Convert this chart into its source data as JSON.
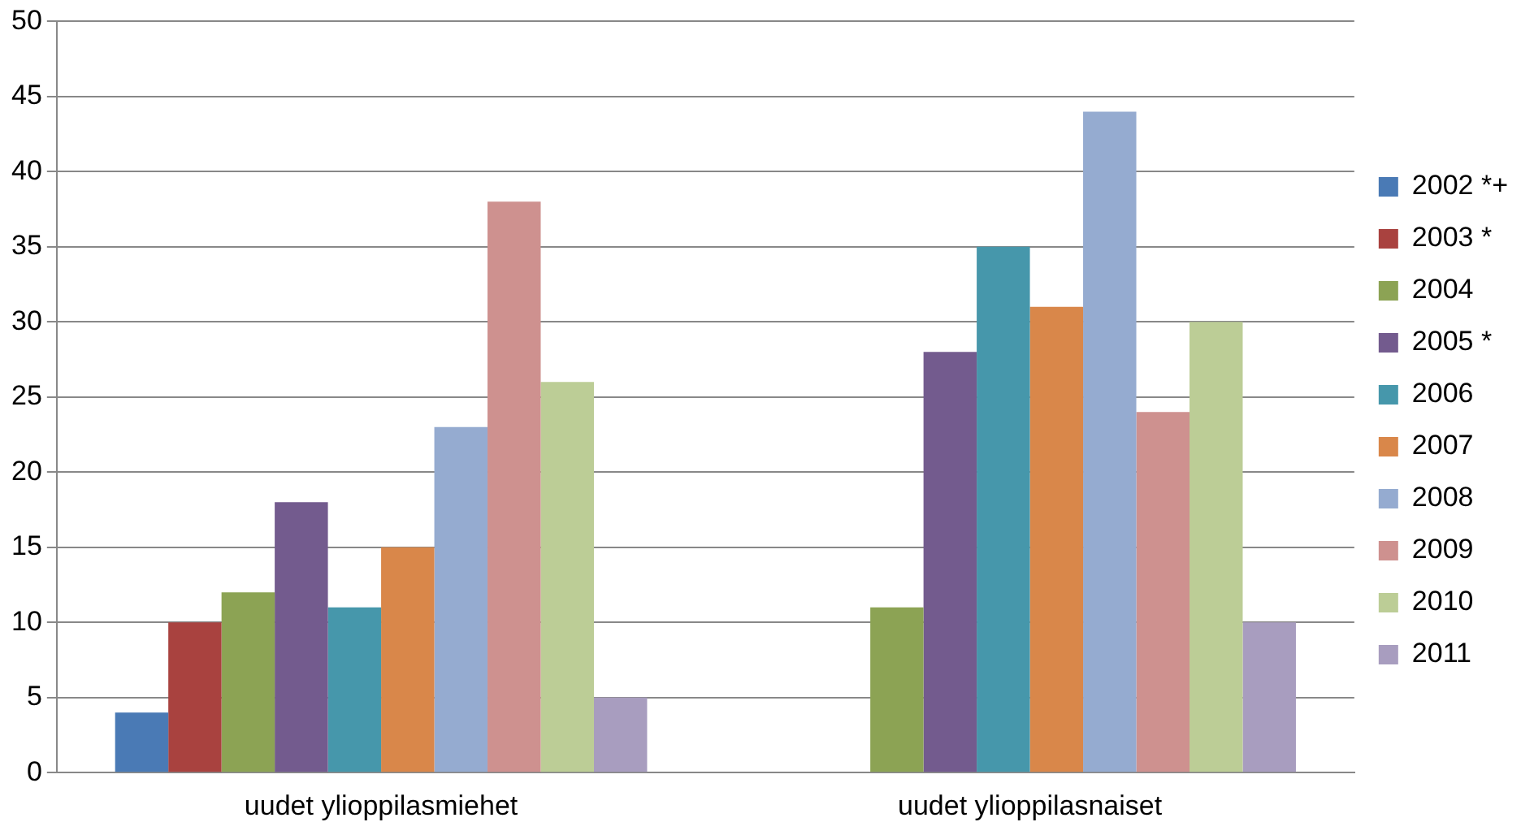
{
  "chart_data": {
    "type": "bar",
    "categories": [
      "uudet ylioppilasmiehet",
      "uudet ylioppilasnaiset"
    ],
    "series": [
      {
        "name": "2002 *+",
        "color": "#4a7ab5",
        "values": [
          4,
          null
        ]
      },
      {
        "name": "2003 *",
        "color": "#a9423f",
        "values": [
          10,
          null
        ]
      },
      {
        "name": "2004",
        "color": "#8ca354",
        "values": [
          12,
          11
        ]
      },
      {
        "name": "2005 *",
        "color": "#735b8e",
        "values": [
          18,
          28
        ]
      },
      {
        "name": "2006",
        "color": "#4697ab",
        "values": [
          11,
          35
        ]
      },
      {
        "name": "2007",
        "color": "#d9874a",
        "values": [
          15,
          31
        ]
      },
      {
        "name": "2008",
        "color": "#95abd0",
        "values": [
          23,
          44
        ]
      },
      {
        "name": "2009",
        "color": "#ce918f",
        "values": [
          38,
          24
        ]
      },
      {
        "name": "2010",
        "color": "#bccd96",
        "values": [
          26,
          30
        ]
      },
      {
        "name": "2011",
        "color": "#a89dbf",
        "values": [
          5,
          10
        ]
      }
    ],
    "ylim": [
      0,
      50
    ],
    "yticks": [
      0,
      5,
      10,
      15,
      20,
      25,
      30,
      35,
      40,
      45,
      50
    ],
    "grid": "y",
    "legend": "right"
  }
}
